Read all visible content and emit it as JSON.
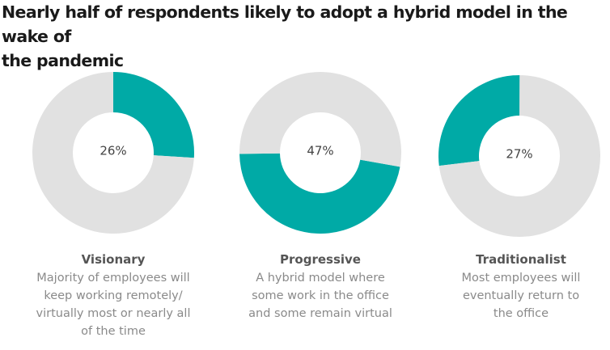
{
  "title_lines": [
    "Nearly half of respondents likely to adopt a hybrid model in the wake of",
    "the pandemic"
  ],
  "colors": {
    "highlight": "#00aaa6",
    "rest": "#e1e1e1"
  },
  "chart_data": [
    {
      "type": "pie",
      "value_label": "26%",
      "slices": [
        {
          "name": "Visionary",
          "value": 26,
          "color": "#00aaa6"
        },
        {
          "name": "",
          "value": 74,
          "color": "#e1e1e1"
        }
      ],
      "category": "Visionary",
      "description_lines": [
        "Majority of employees will",
        "keep working remotely/",
        "virtually most or nearly all",
        "of the time"
      ]
    },
    {
      "type": "pie",
      "value_label": "47%",
      "slices": [
        {
          "name": "Progressive",
          "value": 47,
          "color": "#00aaa6"
        },
        {
          "name": "",
          "value": 53,
          "color": "#e1e1e1"
        }
      ],
      "category": "Progressive",
      "description_lines": [
        "A hybrid model where",
        "some work in the office",
        "and some remain virtual"
      ]
    },
    {
      "type": "pie",
      "value_label": "27%",
      "slices": [
        {
          "name": "Traditionalist",
          "value": 27,
          "color": "#00aaa6"
        },
        {
          "name": "",
          "value": 73,
          "color": "#e1e1e1"
        }
      ],
      "category": "Traditionalist",
      "description_lines": [
        "Most employees will",
        "eventually return to",
        "the office"
      ]
    }
  ]
}
